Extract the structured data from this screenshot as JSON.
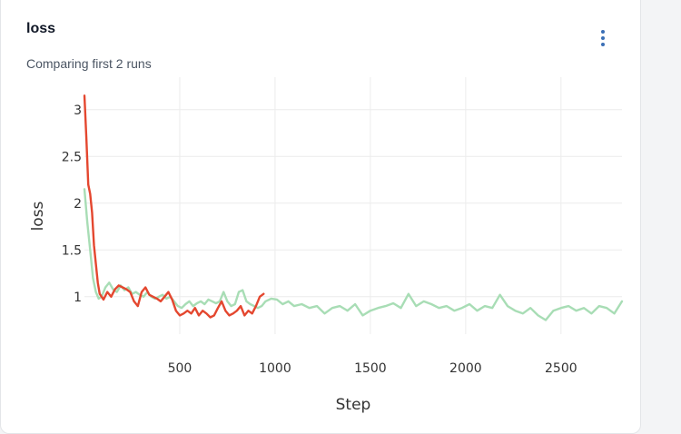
{
  "panel": {
    "title": "loss",
    "subtitle": "Comparing first 2 runs",
    "menu_icon": "kebab-menu-icon"
  },
  "colors": {
    "run_1": "#e4472f",
    "run_2": "#a8ddb5",
    "grid": "#ececec",
    "axis_text": "#333333"
  },
  "chart_data": {
    "type": "line",
    "xlabel": "Step",
    "ylabel": "loss",
    "xlim": [
      0,
      2820
    ],
    "ylim": [
      0.6,
      3.25
    ],
    "x_ticks": [
      500,
      1000,
      1500,
      2000,
      2500
    ],
    "y_ticks": [
      1,
      1.5,
      2,
      2.5,
      3
    ],
    "y_tick_labels": [
      "1",
      "1.5",
      "2",
      "2.5",
      "3"
    ],
    "grid": true,
    "legend": "none",
    "series": [
      {
        "color": "#e4472f",
        "x": [
          0,
          10,
          20,
          30,
          40,
          50,
          60,
          70,
          80,
          90,
          100,
          120,
          140,
          160,
          180,
          200,
          220,
          240,
          260,
          280,
          300,
          320,
          340,
          360,
          380,
          400,
          420,
          440,
          460,
          480,
          500,
          520,
          540,
          560,
          580,
          600,
          620,
          640,
          660,
          680,
          700,
          720,
          740,
          760,
          780,
          800,
          820,
          840,
          860,
          880,
          900,
          920,
          940
        ],
        "y": [
          3.15,
          2.7,
          2.2,
          2.1,
          1.9,
          1.55,
          1.35,
          1.15,
          1.03,
          1.0,
          0.97,
          1.05,
          1.0,
          1.08,
          1.12,
          1.1,
          1.08,
          1.05,
          0.95,
          0.9,
          1.05,
          1.1,
          1.02,
          1.0,
          0.98,
          0.95,
          1.0,
          1.05,
          0.97,
          0.85,
          0.8,
          0.82,
          0.85,
          0.82,
          0.88,
          0.8,
          0.85,
          0.82,
          0.78,
          0.8,
          0.88,
          0.95,
          0.85,
          0.8,
          0.82,
          0.85,
          0.9,
          0.8,
          0.85,
          0.82,
          0.9,
          1.0,
          1.03
        ]
      },
      {
        "color": "#a8ddb5",
        "x": [
          0,
          15,
          30,
          45,
          60,
          75,
          90,
          110,
          130,
          150,
          170,
          190,
          210,
          230,
          250,
          270,
          290,
          310,
          330,
          350,
          370,
          390,
          410,
          430,
          450,
          470,
          490,
          510,
          530,
          550,
          570,
          590,
          610,
          630,
          650,
          670,
          690,
          710,
          730,
          750,
          770,
          790,
          810,
          830,
          850,
          870,
          890,
          910,
          930,
          950,
          980,
          1010,
          1040,
          1070,
          1100,
          1140,
          1180,
          1220,
          1260,
          1300,
          1340,
          1380,
          1420,
          1460,
          1500,
          1540,
          1580,
          1620,
          1660,
          1700,
          1740,
          1780,
          1820,
          1860,
          1900,
          1940,
          1980,
          2020,
          2060,
          2100,
          2140,
          2180,
          2220,
          2260,
          2300,
          2340,
          2380,
          2420,
          2460,
          2500,
          2540,
          2580,
          2620,
          2660,
          2700,
          2740,
          2780,
          2820
        ],
        "y": [
          2.15,
          1.8,
          1.5,
          1.2,
          1.05,
          0.98,
          1.0,
          1.1,
          1.15,
          1.08,
          1.05,
          1.12,
          1.07,
          1.1,
          1.03,
          1.05,
          1.02,
          1.0,
          1.05,
          1.0,
          0.98,
          1.0,
          1.02,
          0.98,
          1.0,
          0.95,
          0.9,
          0.88,
          0.92,
          0.95,
          0.9,
          0.93,
          0.95,
          0.92,
          0.97,
          0.95,
          0.93,
          0.95,
          1.05,
          0.95,
          0.9,
          0.92,
          1.05,
          1.07,
          0.95,
          0.92,
          0.9,
          0.88,
          0.9,
          0.95,
          0.98,
          0.97,
          0.92,
          0.95,
          0.9,
          0.92,
          0.88,
          0.9,
          0.82,
          0.88,
          0.9,
          0.85,
          0.92,
          0.8,
          0.85,
          0.88,
          0.9,
          0.93,
          0.88,
          1.03,
          0.9,
          0.95,
          0.92,
          0.88,
          0.9,
          0.85,
          0.88,
          0.92,
          0.85,
          0.9,
          0.88,
          1.02,
          0.9,
          0.85,
          0.82,
          0.88,
          0.8,
          0.75,
          0.85,
          0.88,
          0.9,
          0.85,
          0.88,
          0.82,
          0.9,
          0.88,
          0.82,
          0.95
        ]
      }
    ]
  }
}
